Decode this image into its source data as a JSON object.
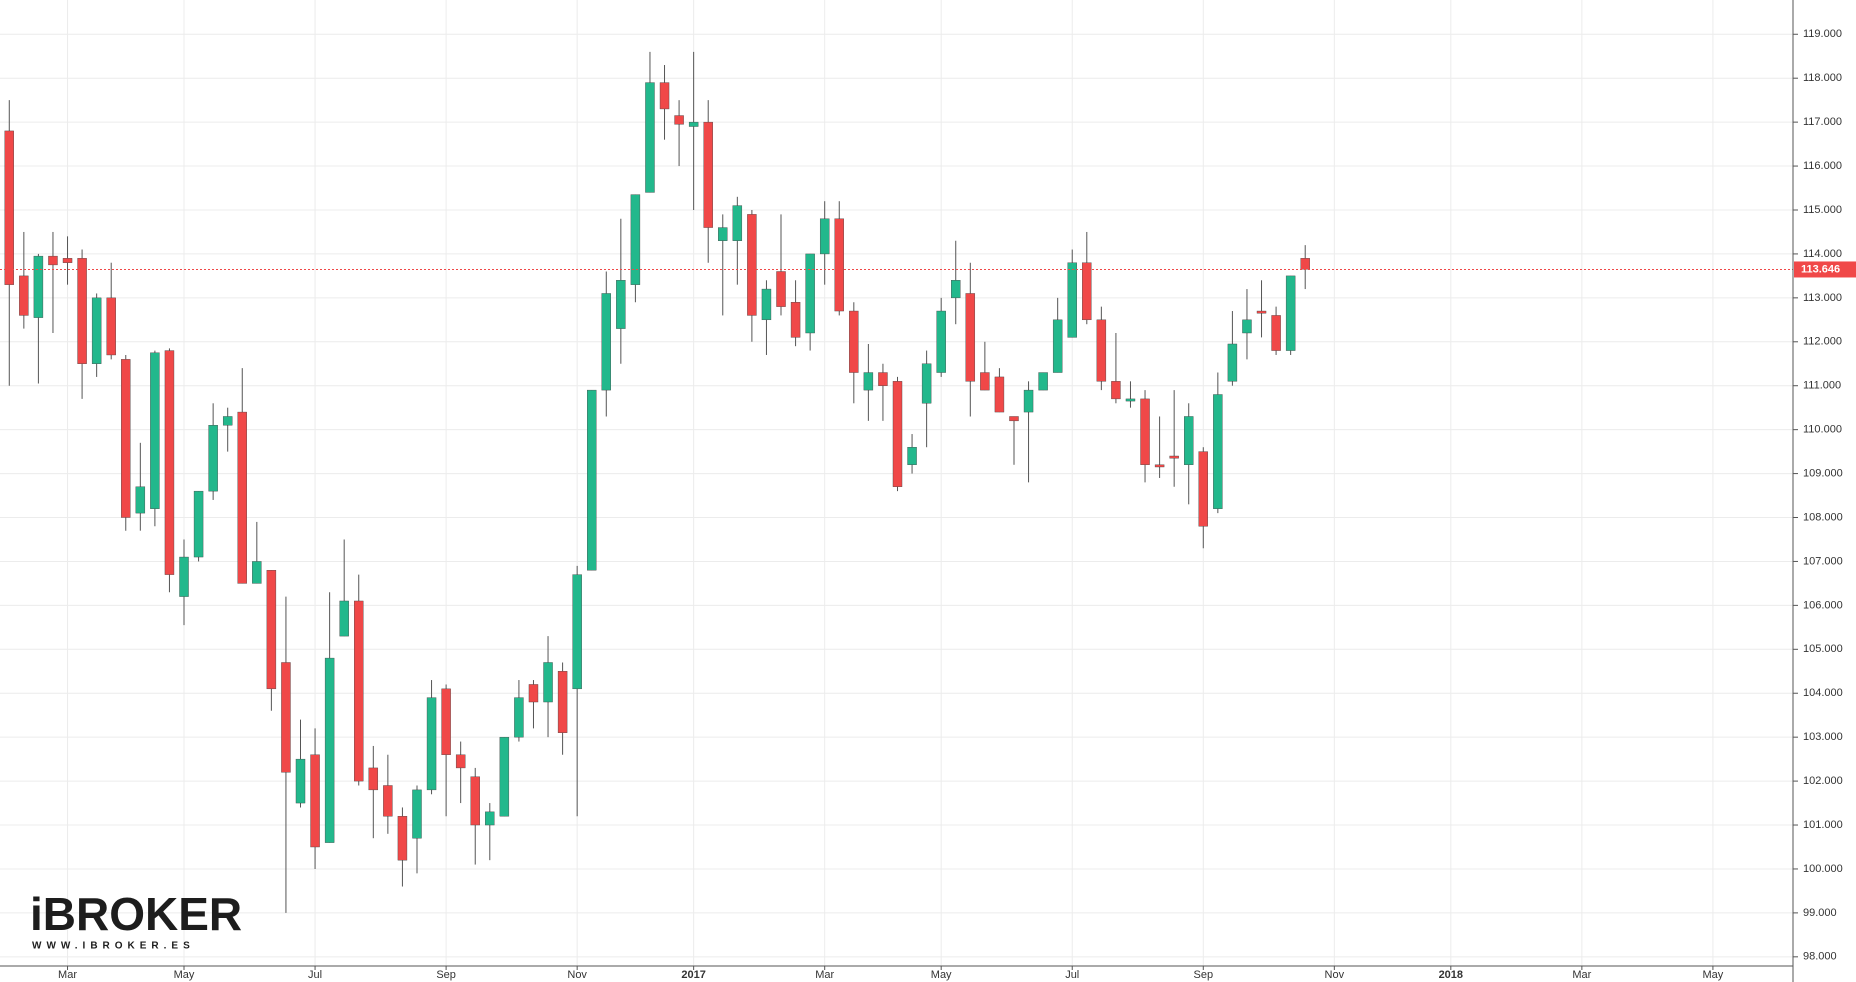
{
  "chart_data": {
    "type": "candlestick",
    "categories": [
      null,
      null,
      null,
      null,
      "Mar",
      null,
      null,
      null,
      null,
      null,
      null,
      null,
      "May",
      null,
      null,
      null,
      null,
      null,
      null,
      null,
      null,
      "Jul",
      null,
      null,
      null,
      null,
      null,
      null,
      null,
      null,
      "Sep",
      null,
      null,
      null,
      null,
      null,
      null,
      null,
      null,
      "Nov",
      null,
      null,
      null,
      null,
      null,
      null,
      null,
      "2017",
      null,
      null,
      null,
      null,
      null,
      null,
      null,
      null,
      "Mar",
      null,
      null,
      null,
      null,
      null,
      null,
      null,
      "May",
      null,
      null,
      null,
      null,
      null,
      null,
      null,
      null,
      "Jul",
      null,
      null,
      null,
      null,
      null,
      null,
      null,
      null,
      "Sep",
      null,
      null,
      null,
      null,
      null,
      null,
      null,
      null,
      "Nov",
      null,
      null,
      null,
      null,
      null,
      null,
      null,
      "2018",
      null,
      null,
      null,
      null,
      null,
      null,
      null,
      null,
      "Mar",
      null,
      null,
      null,
      null,
      null,
      null,
      null,
      null,
      "May",
      null,
      null,
      null,
      null,
      null
    ],
    "open": [
      116.8,
      113.5,
      112.55,
      113.95,
      113.9,
      113.9,
      111.5,
      113.0,
      111.6,
      108.1,
      108.2,
      111.8,
      106.2,
      107.1,
      108.6,
      110.1,
      110.4,
      106.5,
      106.8,
      104.7,
      101.5,
      102.6,
      100.6,
      105.3,
      106.1,
      102.3,
      101.9,
      101.2,
      100.7,
      101.8,
      104.1,
      102.6,
      102.1,
      101.0,
      101.2,
      103.0,
      104.2,
      103.8,
      104.5,
      104.1,
      106.8,
      110.9,
      112.3,
      113.3,
      115.4,
      117.9,
      117.15,
      116.9,
      117.0,
      114.3,
      114.3,
      114.9,
      112.5,
      113.6,
      112.9,
      112.2,
      114.0,
      114.8,
      112.7,
      110.9,
      111.3,
      111.1,
      109.2,
      110.6,
      111.3,
      113.0,
      113.1,
      111.3,
      111.2,
      110.3,
      110.4,
      110.9,
      111.3,
      112.1,
      113.8,
      112.5,
      111.1,
      110.65,
      110.7,
      109.2,
      109.4,
      109.2,
      109.5,
      108.2,
      111.1,
      112.2,
      112.7,
      112.6,
      111.8,
      113.9,
      null,
      null,
      null,
      null,
      null,
      null,
      null,
      null,
      null,
      null,
      null,
      null,
      null,
      null,
      null,
      null,
      null,
      null,
      null,
      null,
      null,
      null,
      null,
      null,
      null,
      null,
      null,
      null,
      null,
      null,
      null,
      null,
      null
    ],
    "high": [
      117.5,
      114.5,
      114.0,
      114.5,
      114.4,
      114.1,
      113.1,
      113.8,
      111.7,
      109.7,
      111.8,
      111.85,
      107.5,
      108.6,
      110.6,
      110.5,
      111.4,
      107.9,
      106.8,
      106.2,
      103.4,
      103.2,
      106.3,
      107.5,
      106.7,
      102.8,
      102.6,
      101.4,
      101.9,
      104.3,
      104.2,
      102.9,
      102.3,
      101.5,
      103.0,
      104.3,
      104.3,
      105.3,
      104.7,
      106.9,
      110.9,
      113.6,
      114.8,
      115.35,
      118.6,
      118.3,
      117.5,
      118.6,
      117.5,
      114.9,
      115.3,
      115.0,
      113.4,
      114.9,
      113.4,
      114.0,
      115.2,
      115.2,
      112.9,
      111.95,
      111.5,
      111.2,
      109.9,
      111.8,
      113.0,
      114.3,
      113.8,
      112.0,
      111.4,
      110.3,
      111.1,
      111.3,
      113.0,
      114.1,
      114.5,
      112.8,
      112.2,
      111.1,
      110.9,
      110.3,
      110.9,
      110.6,
      109.6,
      111.3,
      112.7,
      113.2,
      113.4,
      112.8,
      113.5,
      114.2,
      null,
      null,
      null,
      null,
      null,
      null,
      null,
      null,
      null,
      null,
      null,
      null,
      null,
      null,
      null,
      null,
      null,
      null,
      null,
      null,
      null,
      null,
      null,
      null,
      null,
      null,
      null,
      null,
      null,
      null,
      null,
      null,
      null
    ],
    "low": [
      111.0,
      112.3,
      111.05,
      112.2,
      113.3,
      110.7,
      111.2,
      111.6,
      107.7,
      107.7,
      107.8,
      106.3,
      105.55,
      107.0,
      108.4,
      109.5,
      106.5,
      106.5,
      103.6,
      99.0,
      101.4,
      100.0,
      100.6,
      105.3,
      101.9,
      100.7,
      100.8,
      99.6,
      99.9,
      101.7,
      101.2,
      101.5,
      100.1,
      100.2,
      101.2,
      102.9,
      103.2,
      103.0,
      102.6,
      101.2,
      106.8,
      110.3,
      111.5,
      112.9,
      115.4,
      116.6,
      116.0,
      115.0,
      113.8,
      112.6,
      113.3,
      112.0,
      111.7,
      112.6,
      111.9,
      111.8,
      113.3,
      112.6,
      110.6,
      110.2,
      110.2,
      108.6,
      109.0,
      109.6,
      111.2,
      112.4,
      110.3,
      110.9,
      110.4,
      109.2,
      108.8,
      110.9,
      111.3,
      112.1,
      112.4,
      110.9,
      110.6,
      110.5,
      108.8,
      108.9,
      108.7,
      108.3,
      107.3,
      108.1,
      111.0,
      111.6,
      112.1,
      111.7,
      111.7,
      113.2,
      null,
      null,
      null,
      null,
      null,
      null,
      null,
      null,
      null,
      null,
      null,
      null,
      null,
      null,
      null,
      null,
      null,
      null,
      null,
      null,
      null,
      null,
      null,
      null,
      null,
      null,
      null,
      null,
      null,
      null,
      null,
      null,
      null
    ],
    "close": [
      113.3,
      112.6,
      113.95,
      113.75,
      113.8,
      111.5,
      113.0,
      111.7,
      108.0,
      108.7,
      111.75,
      106.7,
      107.1,
      108.6,
      110.1,
      110.3,
      106.5,
      107.0,
      104.1,
      102.2,
      102.5,
      100.5,
      104.8,
      106.1,
      102.0,
      101.8,
      101.2,
      100.2,
      101.8,
      103.9,
      102.6,
      102.3,
      101.0,
      101.3,
      103.0,
      103.9,
      103.8,
      104.7,
      103.1,
      106.7,
      110.9,
      113.1,
      113.4,
      115.35,
      117.9,
      117.3,
      116.95,
      117.0,
      114.6,
      114.6,
      115.1,
      112.6,
      113.2,
      112.8,
      112.1,
      114.0,
      114.8,
      112.7,
      111.3,
      111.3,
      111.0,
      108.7,
      109.6,
      111.5,
      112.7,
      113.4,
      111.1,
      110.9,
      110.4,
      110.2,
      110.9,
      111.3,
      112.5,
      113.8,
      112.5,
      111.1,
      110.7,
      110.7,
      109.2,
      109.15,
      109.35,
      110.3,
      107.8,
      110.8,
      111.95,
      112.5,
      112.65,
      111.8,
      113.5,
      113.65,
      null,
      null,
      null,
      null,
      null,
      null,
      null,
      null,
      null,
      null,
      null,
      null,
      null,
      null,
      null,
      null,
      null,
      null,
      null,
      null,
      null,
      null,
      null,
      null,
      null,
      null,
      null,
      null,
      null,
      null,
      null,
      null,
      null
    ],
    "up_color": "#22b88c",
    "down_color": "#f04848",
    "ylim": [
      97.7,
      119.78
    ],
    "yticks": [
      {
        "value": 98,
        "label": "98.000"
      },
      {
        "value": 99,
        "label": "99.000"
      },
      {
        "value": 100,
        "label": "100.000"
      },
      {
        "value": 101,
        "label": "101.000"
      },
      {
        "value": 102,
        "label": "102.000"
      },
      {
        "value": 103,
        "label": "103.000"
      },
      {
        "value": 104,
        "label": "104.000"
      },
      {
        "value": 105,
        "label": "105.000"
      },
      {
        "value": 106,
        "label": "106.000"
      },
      {
        "value": 107,
        "label": "107.000"
      },
      {
        "value": 108,
        "label": "108.000"
      },
      {
        "value": 109,
        "label": "109.000"
      },
      {
        "value": 110,
        "label": "110.000"
      },
      {
        "value": 111,
        "label": "111.000"
      },
      {
        "value": 112,
        "label": "112.000"
      },
      {
        "value": 113,
        "label": "113.000"
      },
      {
        "value": 114,
        "label": "114.000"
      },
      {
        "value": 115,
        "label": "115.000"
      },
      {
        "value": 116,
        "label": "116.000"
      },
      {
        "value": 117,
        "label": "117.000"
      },
      {
        "value": 118,
        "label": "118.000"
      },
      {
        "value": 119,
        "label": "119.000"
      }
    ],
    "grid": true,
    "last_price": 113.646
  },
  "logo": {
    "name": "iBROKER",
    "url": "WWW.IBROKER.ES"
  }
}
